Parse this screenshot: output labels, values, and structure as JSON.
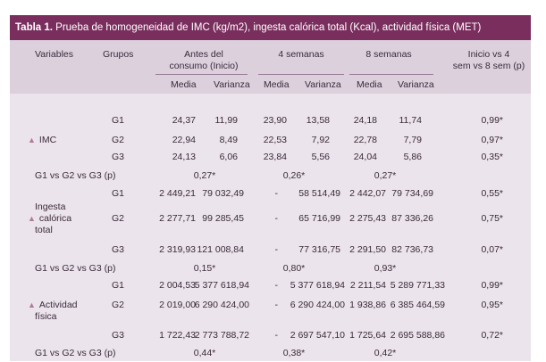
{
  "title": {
    "bold": "Tabla 1.",
    "rest": " Prueba de homogeneidad de IMC (kg/m2), ingesta calórica total (Kcal), actividad física (MET)"
  },
  "header": {
    "variables": "Variables",
    "grupos": "Grupos",
    "antes_line1": "Antes del",
    "antes_line2": "consumo (Inicio)",
    "sem4": "4 semanas",
    "sem8": "8 semanas",
    "inicio_line1": "Inicio vs 4",
    "inicio_line2": "sem vs 8 sem (p)",
    "media": "Media",
    "varianza": "Varianza"
  },
  "imc": {
    "label": "IMC",
    "rows": [
      {
        "g": "G1",
        "m0": "24,37",
        "v0": "11,99",
        "m4": "23,90",
        "v4": "13,58",
        "m8": "24,18",
        "v8": "11,74",
        "p": "0,99*"
      },
      {
        "g": "G2",
        "m0": "22,94",
        "v0": "8,49",
        "m4": "22,53",
        "v4": "7,92",
        "m8": "22,78",
        "v8": "7,79",
        "p": "0,97*"
      },
      {
        "g": "G3",
        "m0": "24,13",
        "v0": "6,06",
        "m4": "23,84",
        "v4": "5,56",
        "m8": "24,04",
        "v8": "5,86",
        "p": "0,35*"
      }
    ],
    "cmp_label": "G1 vs G2 vs G3 (p)",
    "cmp": [
      "0,27*",
      "0,26*",
      "0,27*"
    ]
  },
  "ingesta": {
    "label1": "Ingesta",
    "label2": "calórica",
    "label3": "total",
    "rows": [
      {
        "g": "G1",
        "m0": "2 449,21",
        "v0": "79 032,49",
        "m4": "-",
        "v4": "58 514,49",
        "m8": "2 442,07",
        "v8": "79 734,69",
        "p": "0,55*"
      },
      {
        "g": "G2",
        "m0": "2 277,71",
        "v0": "99 285,45",
        "m4": "-",
        "v4": "65 716,99",
        "m8": "2 275,43",
        "v8": "87 336,26",
        "p": "0,75*"
      },
      {
        "g": "G3",
        "m0": "2 319,93",
        "v0": "121 008,84",
        "m4": "-",
        "v4": "77 316,75",
        "m8": "2 291,50",
        "v8": "82 736,73",
        "p": "0,07*"
      }
    ],
    "cmp_label": "G1 vs G2 vs G3 (p)",
    "cmp": [
      "0,15*",
      "0,80*",
      "0,93*"
    ]
  },
  "actividad": {
    "label1": "Actividad",
    "label2": "física",
    "rows": [
      {
        "g": "G1",
        "m0": "2 004,53",
        "v0": "5 377 618,94",
        "m4": "-",
        "v4": "5 377 618,94",
        "m8": "2 211,54",
        "v8": "5 289 771,33",
        "p": "0,99*"
      },
      {
        "g": "G2",
        "m0": "2 019,00",
        "v0": "6 290 424,00",
        "m4": "-",
        "v4": "6 290 424,00",
        "m8": "1 938,86",
        "v8": "6 385 464,59",
        "p": "0,95*"
      },
      {
        "g": "G3",
        "m0": "1 722,43",
        "v0": "2 773 788,72",
        "m4": "-",
        "v4": "2 697 547,10",
        "m8": "1 725,64",
        "v8": "2 695 588,86",
        "p": "0,72*"
      }
    ],
    "cmp_label": "G1 vs G2 vs G3 (p)",
    "cmp": [
      "0,44*",
      "0,38*",
      "0,42*"
    ]
  }
}
